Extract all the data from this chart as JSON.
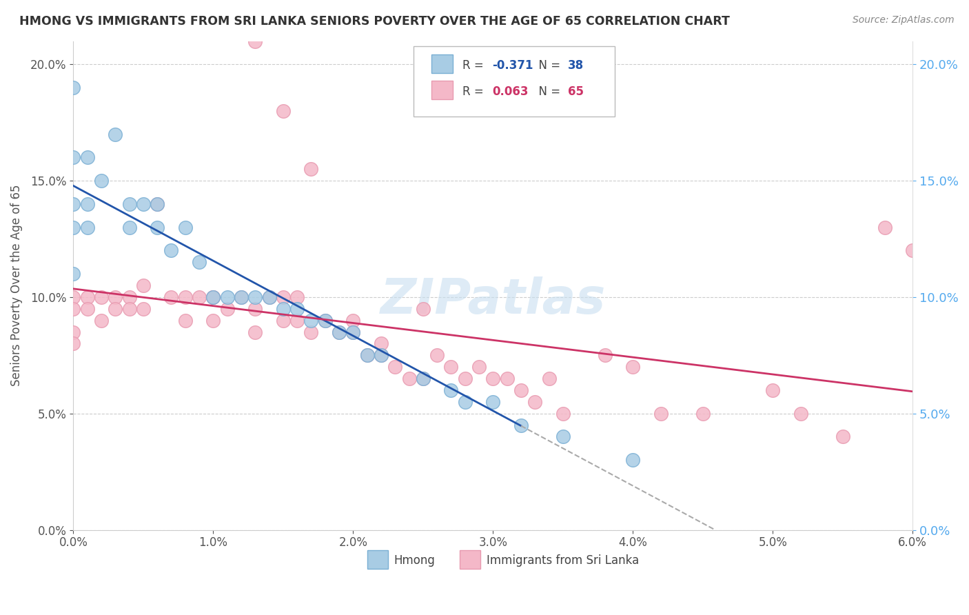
{
  "title": "HMONG VS IMMIGRANTS FROM SRI LANKA SENIORS POVERTY OVER THE AGE OF 65 CORRELATION CHART",
  "source": "Source: ZipAtlas.com",
  "ylabel": "Seniors Poverty Over the Age of 65",
  "xmin": 0.0,
  "xmax": 0.06,
  "ymin": 0.0,
  "ymax": 0.21,
  "hmong_R": -0.371,
  "hmong_N": 38,
  "srilanka_R": 0.063,
  "srilanka_N": 65,
  "hmong_color": "#a8cce4",
  "srilanka_color": "#f4b8c8",
  "hmong_edge_color": "#7aafd4",
  "srilanka_edge_color": "#e89ab0",
  "hmong_line_color": "#2255aa",
  "srilanka_line_color": "#cc3366",
  "dashed_line_color": "#aaaaaa",
  "right_axis_color": "#55aaee",
  "hmong_x": [
    0.0,
    0.0,
    0.0,
    0.0,
    0.0,
    0.001,
    0.001,
    0.001,
    0.002,
    0.003,
    0.004,
    0.004,
    0.005,
    0.006,
    0.006,
    0.007,
    0.008,
    0.009,
    0.01,
    0.011,
    0.012,
    0.013,
    0.014,
    0.015,
    0.016,
    0.017,
    0.018,
    0.019,
    0.02,
    0.021,
    0.022,
    0.025,
    0.027,
    0.028,
    0.03,
    0.032,
    0.035,
    0.04
  ],
  "hmong_y": [
    0.19,
    0.16,
    0.14,
    0.13,
    0.11,
    0.16,
    0.14,
    0.13,
    0.15,
    0.17,
    0.14,
    0.13,
    0.14,
    0.14,
    0.13,
    0.12,
    0.13,
    0.115,
    0.1,
    0.1,
    0.1,
    0.1,
    0.1,
    0.095,
    0.095,
    0.09,
    0.09,
    0.085,
    0.085,
    0.075,
    0.075,
    0.065,
    0.06,
    0.055,
    0.055,
    0.045,
    0.04,
    0.03
  ],
  "srilanka_x": [
    0.0,
    0.0,
    0.0,
    0.0,
    0.001,
    0.001,
    0.002,
    0.002,
    0.003,
    0.003,
    0.004,
    0.004,
    0.005,
    0.005,
    0.006,
    0.007,
    0.008,
    0.008,
    0.009,
    0.01,
    0.01,
    0.01,
    0.011,
    0.012,
    0.013,
    0.013,
    0.014,
    0.015,
    0.015,
    0.016,
    0.016,
    0.017,
    0.018,
    0.019,
    0.02,
    0.02,
    0.021,
    0.022,
    0.023,
    0.024,
    0.025,
    0.026,
    0.027,
    0.028,
    0.029,
    0.03,
    0.031,
    0.032,
    0.033,
    0.034,
    0.035,
    0.038,
    0.04,
    0.042,
    0.045,
    0.05,
    0.052,
    0.055,
    0.058,
    0.06,
    0.025,
    0.022,
    0.013,
    0.015,
    0.017
  ],
  "srilanka_y": [
    0.1,
    0.095,
    0.085,
    0.08,
    0.1,
    0.095,
    0.1,
    0.09,
    0.1,
    0.095,
    0.1,
    0.095,
    0.105,
    0.095,
    0.14,
    0.1,
    0.1,
    0.09,
    0.1,
    0.1,
    0.1,
    0.09,
    0.095,
    0.1,
    0.095,
    0.085,
    0.1,
    0.1,
    0.09,
    0.1,
    0.09,
    0.085,
    0.09,
    0.085,
    0.09,
    0.085,
    0.075,
    0.075,
    0.07,
    0.065,
    0.095,
    0.075,
    0.07,
    0.065,
    0.07,
    0.065,
    0.065,
    0.06,
    0.055,
    0.065,
    0.05,
    0.075,
    0.07,
    0.05,
    0.05,
    0.06,
    0.05,
    0.04,
    0.13,
    0.12,
    0.065,
    0.08,
    0.21,
    0.18,
    0.155
  ]
}
